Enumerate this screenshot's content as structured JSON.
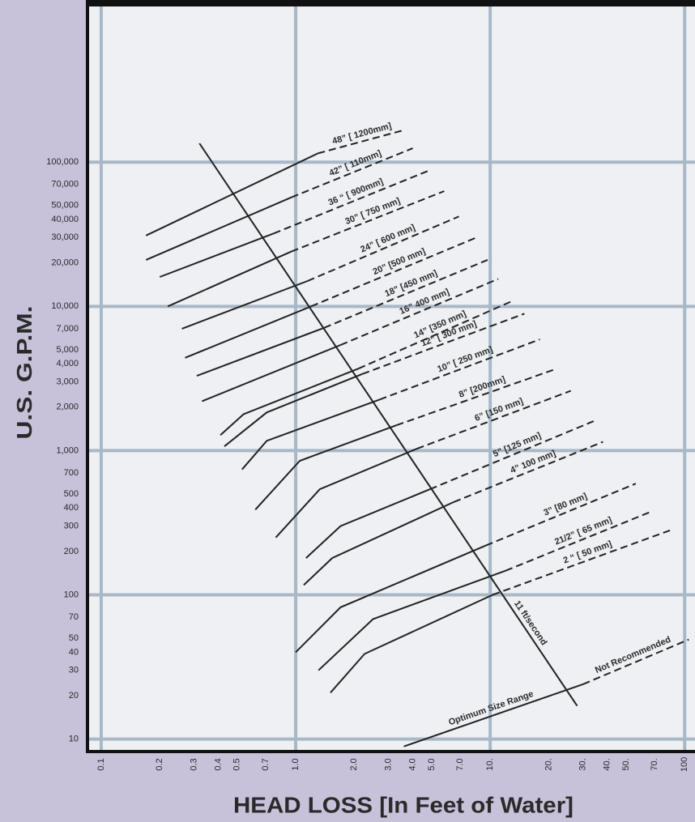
{
  "chart_data": {
    "type": "line",
    "log_x": true,
    "log_y": true,
    "grid": true,
    "y_axis_label": "U.S.  G.P.M.",
    "x_axis_label": "HEAD LOSS [In Feet of Water]",
    "color": "#222222",
    "xlim": [
      0.085,
      113
    ],
    "ylim": [
      8.2,
      1200000
    ],
    "xticks": [
      0.1,
      0.2,
      0.3,
      0.4,
      0.5,
      0.7,
      {
        "value": 1,
        "label": "1.0"
      },
      {
        "value": 2,
        "label": "2.0"
      },
      {
        "value": 3,
        "label": "3.0"
      },
      {
        "value": 4,
        "label": "4.0"
      },
      {
        "value": 5,
        "label": "5.0"
      },
      {
        "value": 7,
        "label": "7.0"
      },
      {
        "value": 10,
        "label": "10."
      },
      {
        "value": 20,
        "label": "20."
      },
      {
        "value": 30,
        "label": "30."
      },
      {
        "value": 40,
        "label": "40."
      },
      {
        "value": 50,
        "label": "50."
      },
      {
        "value": 70,
        "label": "70."
      },
      100
    ],
    "yticks": [
      {
        "value": 100000,
        "label": "100,000"
      },
      {
        "value": 70000,
        "label": "70,000"
      },
      {
        "value": 50000,
        "label": "50,000"
      },
      {
        "value": 40000,
        "label": "40,000"
      },
      {
        "value": 30000,
        "label": "30,000"
      },
      {
        "value": 20000,
        "label": "20,000"
      },
      {
        "value": 10000,
        "label": "10,000"
      },
      {
        "value": 7000,
        "label": "7,000"
      },
      {
        "value": 5000,
        "label": "5,000"
      },
      {
        "value": 4000,
        "label": "4,000"
      },
      {
        "value": 3000,
        "label": "3,000"
      },
      {
        "value": 2000,
        "label": "2,000"
      },
      {
        "value": 1000,
        "label": "1,000"
      },
      700,
      500,
      400,
      300,
      200,
      100,
      70,
      50,
      40,
      30,
      20,
      10
    ],
    "series": [
      {
        "name": "48” [ 1200mm]",
        "x": [
          0.17,
          1.3
        ],
        "values": [
          31000,
          115000
        ],
        "extension": {
          "x": [
            1.3,
            3.5
          ],
          "values": [
            115000,
            165000
          ]
        }
      },
      {
        "name": "42” [ 110mm]",
        "x": [
          0.17,
          0.95
        ],
        "values": [
          21000,
          57000
        ],
        "extension": {
          "x": [
            0.95,
            4.0
          ],
          "values": [
            57000,
            125000
          ]
        }
      },
      {
        "name": "36 “ [ 900mm]",
        "x": [
          0.2,
          0.77
        ],
        "values": [
          16000,
          32000
        ],
        "extension": {
          "x": [
            0.77,
            4.8
          ],
          "values": [
            32000,
            87000
          ]
        }
      },
      {
        "name": "30” [ 750 mm]",
        "x": [
          0.22,
          0.95
        ],
        "values": [
          10000,
          24000
        ],
        "extension": {
          "x": [
            0.95,
            5.8
          ],
          "values": [
            24000,
            63000
          ]
        }
      },
      {
        "name": "24” [ 600 mm]",
        "x": [
          0.26,
          1.15
        ],
        "values": [
          7000,
          15000
        ],
        "extension": {
          "x": [
            1.15,
            6.9
          ],
          "values": [
            15000,
            42000
          ]
        }
      },
      {
        "name": "20” [500 mm]",
        "x": [
          0.27,
          1.2
        ],
        "values": [
          4400,
          10000
        ],
        "extension": {
          "x": [
            1.2,
            8.5
          ],
          "values": [
            10000,
            30000
          ]
        }
      },
      {
        "name": "18” [450 mm]",
        "x": [
          0.31,
          1.4
        ],
        "values": [
          3300,
          7100
        ],
        "extension": {
          "x": [
            1.4,
            9.7
          ],
          "values": [
            7100,
            21000
          ]
        }
      },
      {
        "name": "16” 400 mm]",
        "x": [
          0.33,
          1.7
        ],
        "values": [
          2200,
          5400
        ],
        "extension": {
          "x": [
            1.7,
            11
          ],
          "values": [
            5400,
            15500
          ]
        }
      },
      {
        "name": "14” [350 mm]",
        "x": [
          0.41,
          0.54,
          2.1
        ],
        "values": [
          1280,
          1790,
          3700
        ],
        "extension": {
          "x": [
            2.1,
            13
          ],
          "values": [
            3700,
            10900
          ]
        }
      },
      {
        "name": "12” [ 300 mm]",
        "x": [
          0.43,
          0.71,
          2.2
        ],
        "values": [
          1070,
          1840,
          3400
        ],
        "extension": {
          "x": [
            2.2,
            15
          ],
          "values": [
            3400,
            8900
          ]
        }
      },
      {
        "name": "10” [ 250 mm]",
        "x": [
          0.53,
          0.71,
          2.7
        ],
        "values": [
          740,
          1170,
          2260
        ],
        "extension": {
          "x": [
            2.7,
            18
          ],
          "values": [
            2260,
            5900
          ]
        }
      },
      {
        "name": "8” [200mm]",
        "x": [
          0.62,
          1.05,
          3.3
        ],
        "values": [
          390,
          850,
          1500
        ],
        "extension": {
          "x": [
            3.3,
            22
          ],
          "values": [
            1500,
            3700
          ]
        }
      },
      {
        "name": "6” [150 mm]",
        "x": [
          0.79,
          1.33,
          4.2
        ],
        "values": [
          250,
          540,
          1030
        ],
        "extension": {
          "x": [
            4.2,
            26
          ],
          "values": [
            1030,
            2600
          ]
        }
      },
      {
        "name": "5” [125 mm]",
        "x": [
          1.13,
          1.7,
          4.9
        ],
        "values": [
          180,
          300,
          540
        ],
        "extension": {
          "x": [
            4.9,
            34
          ],
          "values": [
            540,
            1600
          ]
        }
      },
      {
        "name": "4” 100 mm]",
        "x": [
          1.1,
          1.54,
          6.5
        ],
        "values": [
          117,
          180,
          440
        ],
        "extension": {
          "x": [
            6.5,
            38
          ],
          "values": [
            440,
            1150
          ]
        }
      },
      {
        "name": "3” [80 mm]",
        "x": [
          1.0,
          1.7,
          9.5
        ],
        "values": [
          40,
          82,
          220
        ],
        "extension": {
          "x": [
            9.5,
            56
          ],
          "values": [
            220,
            590
          ]
        }
      },
      {
        "name": "21/2” [ 65 mm]",
        "x": [
          1.31,
          2.5,
          12
        ],
        "values": [
          30,
          68,
          147
        ],
        "extension": {
          "x": [
            12,
            68
          ],
          "values": [
            147,
            380
          ]
        }
      },
      {
        "name": "2 “ [ 50 mm]",
        "x": [
          1.51,
          2.26,
          10.3
        ],
        "values": [
          21,
          39,
          100
        ],
        "extension": {
          "x": [
            10.3,
            84
          ],
          "values": [
            100,
            280
          ]
        }
      }
    ],
    "reference_lines": [
      {
        "name": "11 ft/second",
        "x": [
          0.32,
          28
        ],
        "values": [
          135000,
          17
        ]
      },
      {
        "name": "Optimum Size Range",
        "x": [
          3.6,
          30
        ],
        "values": [
          8.9,
          24
        ]
      },
      {
        "name": "Not Recommended",
        "x": [
          30,
          105
        ],
        "values": [
          24,
          49
        ],
        "dashed": true
      }
    ]
  }
}
